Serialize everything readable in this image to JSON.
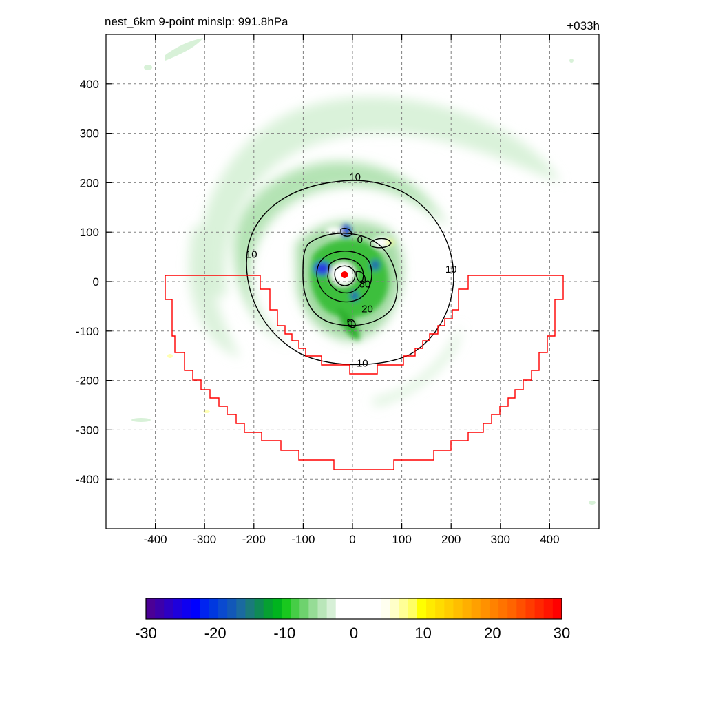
{
  "title_left": "nest_6km  9-point minslp: 991.8hPa",
  "title_right": "+033h",
  "chart_data": {
    "type": "heatmap",
    "xlim": [
      -500,
      500
    ],
    "ylim": [
      -500,
      500
    ],
    "x_ticks": [
      -400,
      -300,
      -200,
      -100,
      0,
      100,
      200,
      300,
      400
    ],
    "y_ticks": [
      400,
      300,
      200,
      100,
      0,
      -100,
      -200,
      -300,
      -400
    ],
    "grid": true,
    "center_marker": {
      "x": -16,
      "y": 14,
      "color": "#ff0000"
    },
    "contour_labels": [
      {
        "text": "10",
        "x": 5,
        "y": 212
      },
      {
        "text": "10",
        "x": -205,
        "y": 55
      },
      {
        "text": "10",
        "x": 200,
        "y": 25
      },
      {
        "text": "10",
        "x": 20,
        "y": -165
      },
      {
        "text": "20",
        "x": 30,
        "y": -55
      },
      {
        "text": "30",
        "x": 25,
        "y": -5
      },
      {
        "text": "0",
        "x": -5,
        "y": -85
      },
      {
        "text": "0",
        "x": 15,
        "y": 85
      }
    ],
    "colorbar": {
      "min": -30,
      "max": 30,
      "ticks": [
        -30,
        -20,
        -10,
        0,
        10,
        20,
        30
      ],
      "colors": [
        "#4b0096",
        "#3c00aa",
        "#2d00c3",
        "#1e00dc",
        "#0f00f0",
        "#0000ff",
        "#0024f0",
        "#0038e0",
        "#0a4ad0",
        "#1258b8",
        "#1a6aa0",
        "#1a7a7a",
        "#0f8a55",
        "#06a032",
        "#00b41e",
        "#19c81e",
        "#46cd46",
        "#6ed26e",
        "#96dc96",
        "#b9e6b9",
        "#d7f0d7",
        "#ffffff",
        "#ffffff",
        "#ffffff",
        "#ffffff",
        "#ffffff",
        "#fffff0",
        "#ffffc8",
        "#ffff96",
        "#ffff64",
        "#ffff00",
        "#ffeb00",
        "#ffdc00",
        "#ffcd00",
        "#ffbe00",
        "#ffaf00",
        "#ffa000",
        "#ff9100",
        "#ff8200",
        "#ff7300",
        "#ff6400",
        "#ff5000",
        "#ff3c00",
        "#ff2800",
        "#ff1400",
        "#ff0000"
      ]
    },
    "series": [
      {
        "level": 10,
        "shape": "wind-speed contour",
        "color": "#000000"
      },
      {
        "shape": "domain boundary",
        "color": "#ff0000"
      }
    ]
  }
}
